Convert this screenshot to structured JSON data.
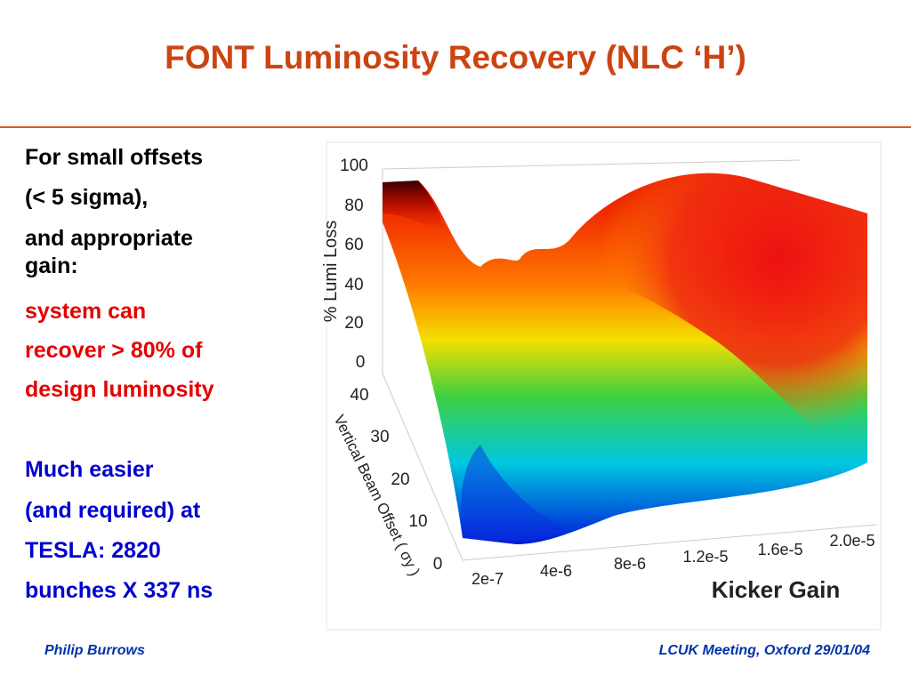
{
  "header": {
    "title": "FONT Luminosity Recovery (NLC ‘H’)"
  },
  "body": {
    "lines": [
      "For small offsets",
      "(< 5 sigma),",
      "and appropriate",
      "gain:",
      "system can",
      "recover > 80% of",
      "design luminosity",
      "Much easier",
      "(and required) at",
      "TESLA: 2820",
      "bunches X 337 ns"
    ]
  },
  "figure": {
    "z_axis_label": "% Lumi Loss",
    "z_ticks": [
      "100",
      "80",
      "60",
      "40",
      "20",
      "0"
    ],
    "offset_axis_label": "Vertical Beam Offset ( σy )",
    "offset_ticks": [
      "40",
      "30",
      "20",
      "10",
      "0"
    ],
    "x_axis_label": "Kicker Gain",
    "x_ticks": [
      "2e-7",
      "4e-6",
      "8e-6",
      "1.2e-5",
      "1.6e-5",
      "2.0e-5"
    ]
  },
  "footer": {
    "left": "Philip Burrows",
    "right": "LCUK Meeting, Oxford 29/01/04"
  }
}
